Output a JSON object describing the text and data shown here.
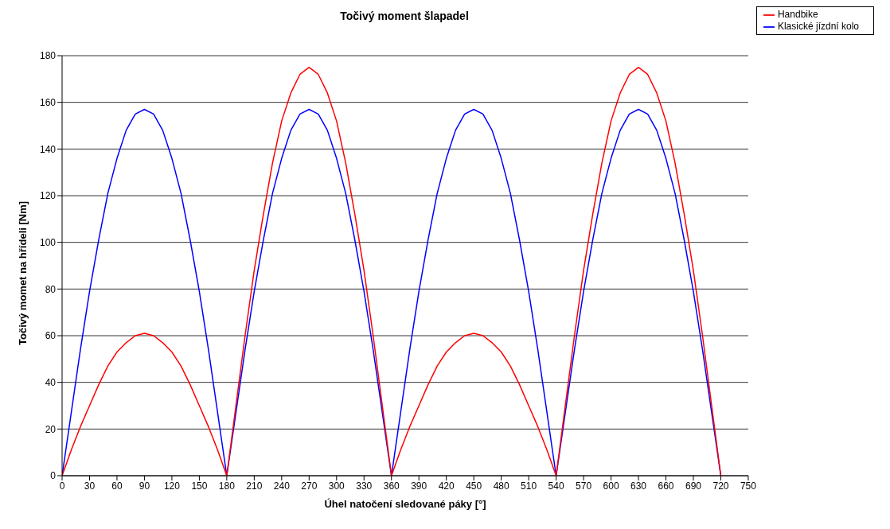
{
  "chart_data": {
    "type": "line",
    "title": "Točivý moment šlapadel",
    "xlabel": "Úhel natočení sledované páky [°]",
    "ylabel": "Točivý momet na hřídeli [Nm]",
    "x": [
      0,
      10,
      20,
      30,
      40,
      50,
      60,
      70,
      80,
      90,
      100,
      110,
      120,
      130,
      140,
      150,
      160,
      170,
      180,
      190,
      200,
      210,
      220,
      230,
      240,
      250,
      260,
      270,
      280,
      290,
      300,
      310,
      320,
      330,
      340,
      350,
      360,
      370,
      380,
      390,
      400,
      410,
      420,
      430,
      440,
      450,
      460,
      470,
      480,
      490,
      500,
      510,
      520,
      530,
      540,
      550,
      560,
      570,
      580,
      590,
      600,
      610,
      620,
      630,
      640,
      650,
      660,
      670,
      680,
      690,
      700,
      710,
      720
    ],
    "series": [
      {
        "name": "Klasické jízdní kolo",
        "color": "#0000ff",
        "values": [
          0,
          27,
          54,
          79,
          101,
          121,
          136,
          148,
          155,
          157,
          155,
          148,
          136,
          121,
          101,
          79,
          54,
          27,
          0,
          27,
          54,
          79,
          101,
          121,
          136,
          148,
          155,
          157,
          155,
          148,
          136,
          121,
          101,
          79,
          54,
          27,
          0,
          27,
          54,
          79,
          101,
          121,
          136,
          148,
          155,
          157,
          155,
          148,
          136,
          121,
          101,
          79,
          54,
          27,
          0,
          27,
          54,
          79,
          101,
          121,
          136,
          148,
          155,
          157,
          155,
          148,
          136,
          121,
          101,
          79,
          54,
          27,
          0
        ]
      },
      {
        "name": "Handbike",
        "color": "#ff0000",
        "values": [
          0,
          11,
          21,
          30,
          39,
          47,
          53,
          57,
          60,
          61,
          60,
          57,
          53,
          47,
          39,
          30,
          21,
          11,
          0,
          30,
          60,
          88,
          112,
          134,
          152,
          164,
          172,
          175,
          172,
          164,
          152,
          134,
          112,
          88,
          60,
          30,
          0,
          11,
          21,
          30,
          39,
          47,
          53,
          57,
          60,
          61,
          60,
          57,
          53,
          47,
          39,
          30,
          21,
          11,
          0,
          30,
          60,
          88,
          112,
          134,
          152,
          164,
          172,
          175,
          172,
          164,
          152,
          134,
          112,
          88,
          60,
          30,
          0
        ]
      }
    ],
    "xlim": [
      0,
      750
    ],
    "xticks": [
      0,
      30,
      60,
      90,
      120,
      150,
      180,
      210,
      240,
      270,
      300,
      330,
      360,
      390,
      420,
      450,
      480,
      510,
      540,
      570,
      600,
      630,
      660,
      690,
      720,
      750
    ],
    "ylim": [
      0,
      180
    ],
    "yticks": [
      0,
      20,
      40,
      60,
      80,
      100,
      120,
      140,
      160,
      180
    ],
    "grid": "y",
    "legend": "top right",
    "marker": "none",
    "line_style": "solid"
  }
}
